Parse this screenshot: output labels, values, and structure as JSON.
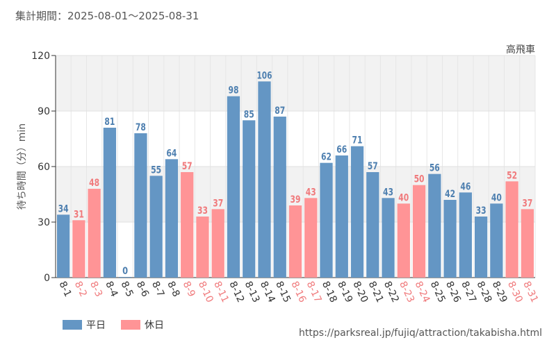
{
  "header": {
    "period_label": "集計期間：",
    "period_range": "2025-08-01～2025-08-31"
  },
  "source_url": "https://parksreal.jp/fujiq/attraction/takabisha.html",
  "colors": {
    "weekday": "#6496c4",
    "holiday": "#ff9496",
    "weekday_label": "#4f80b0",
    "holiday_label": "#f07a7c",
    "grid_band": "#f2f2f2"
  },
  "chart_data": {
    "type": "bar",
    "attraction": "高飛車",
    "ylabel": "待ち時間（分）min",
    "ylim": [
      0,
      120
    ],
    "yticks": [
      0,
      30,
      60,
      90,
      120
    ],
    "grid": true,
    "legend_position": "bottom-left",
    "categories": [
      "8-1",
      "8-2",
      "8-3",
      "8-4",
      "8-5",
      "8-6",
      "8-7",
      "8-8",
      "8-9",
      "8-10",
      "8-11",
      "8-12",
      "8-13",
      "8-14",
      "8-15",
      "8-16",
      "8-17",
      "8-18",
      "8-19",
      "8-20",
      "8-21",
      "8-22",
      "8-23",
      "8-24",
      "8-25",
      "8-26",
      "8-27",
      "8-28",
      "8-29",
      "8-30",
      "8-31"
    ],
    "values": [
      34,
      31,
      48,
      81,
      0,
      78,
      55,
      64,
      57,
      33,
      37,
      98,
      85,
      106,
      87,
      39,
      43,
      62,
      66,
      71,
      57,
      43,
      40,
      50,
      56,
      42,
      46,
      33,
      40,
      52,
      37
    ],
    "day_type": [
      "weekday",
      "holiday",
      "holiday",
      "weekday",
      "weekday",
      "weekday",
      "weekday",
      "weekday",
      "holiday",
      "holiday",
      "holiday",
      "weekday",
      "weekday",
      "weekday",
      "weekday",
      "holiday",
      "holiday",
      "weekday",
      "weekday",
      "weekday",
      "weekday",
      "weekday",
      "holiday",
      "holiday",
      "weekday",
      "weekday",
      "weekday",
      "weekday",
      "weekday",
      "holiday",
      "holiday"
    ],
    "series": [
      {
        "key": "weekday",
        "name": "平日"
      },
      {
        "key": "holiday",
        "name": "休日"
      }
    ]
  }
}
